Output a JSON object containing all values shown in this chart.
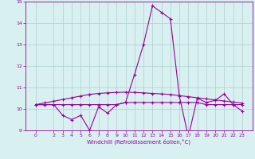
{
  "xlabel": "Windchill (Refroidissement éolien,°C)",
  "x_values": [
    0,
    1,
    2,
    3,
    4,
    5,
    6,
    7,
    8,
    9,
    10,
    11,
    12,
    13,
    14,
    15,
    16,
    17,
    18,
    19,
    20,
    21,
    22,
    23
  ],
  "line1_values": [
    10.2,
    10.2,
    10.2,
    9.7,
    9.5,
    9.7,
    9.0,
    10.1,
    9.8,
    10.2,
    10.3,
    11.6,
    13.0,
    14.8,
    14.5,
    14.2,
    10.6,
    8.7,
    10.5,
    10.3,
    10.4,
    10.7,
    10.2,
    9.9
  ],
  "line2_values": [
    10.2,
    10.2,
    10.2,
    10.2,
    10.2,
    10.2,
    10.2,
    10.2,
    10.2,
    10.2,
    10.3,
    10.3,
    10.3,
    10.3,
    10.3,
    10.3,
    10.3,
    10.3,
    10.3,
    10.2,
    10.2,
    10.2,
    10.2,
    10.2
  ],
  "line3_values": [
    10.2,
    10.28,
    10.36,
    10.44,
    10.52,
    10.6,
    10.68,
    10.72,
    10.75,
    10.77,
    10.78,
    10.77,
    10.75,
    10.72,
    10.7,
    10.67,
    10.62,
    10.57,
    10.52,
    10.47,
    10.42,
    10.37,
    10.32,
    10.27
  ],
  "line_color": "#990099",
  "bg_color": "#d8f0f0",
  "grid_color": "#aecece",
  "ylim": [
    9,
    15
  ],
  "yticks": [
    9,
    10,
    11,
    12,
    13,
    14,
    15
  ],
  "xticks": [
    0,
    2,
    3,
    4,
    5,
    6,
    7,
    8,
    9,
    10,
    11,
    12,
    13,
    14,
    15,
    16,
    17,
    18,
    19,
    20,
    21,
    22,
    23
  ],
  "marker": "+",
  "markersize": 3,
  "linewidth": 0.8
}
